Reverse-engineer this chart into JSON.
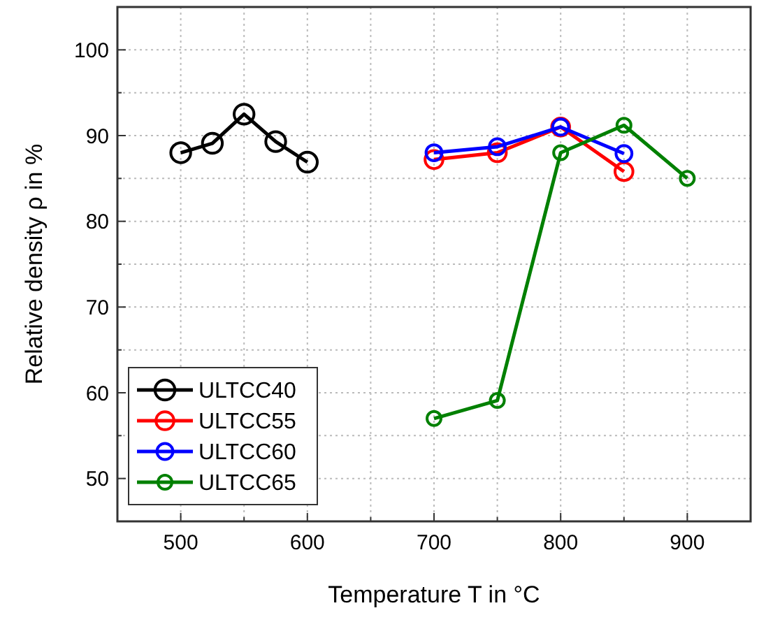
{
  "chart_data": {
    "type": "line",
    "xlabel": "Temperature T in °C",
    "ylabel": "Relative density ρ in %",
    "xlim": [
      450,
      950
    ],
    "ylim": [
      45,
      105
    ],
    "xticks": [
      {
        "value": 450,
        "label": null
      },
      500,
      {
        "value": 550,
        "label": null
      },
      600,
      {
        "value": 650,
        "label": null
      },
      700,
      {
        "value": 750,
        "label": null
      },
      800,
      {
        "value": 850,
        "label": null
      },
      900,
      {
        "value": 950,
        "label": null
      }
    ],
    "yticks": [
      {
        "value": 45,
        "label": null
      },
      50,
      {
        "value": 55,
        "label": null
      },
      60,
      {
        "value": 65,
        "label": null
      },
      70,
      {
        "value": 75,
        "label": null
      },
      80,
      {
        "value": 85,
        "label": null
      },
      90,
      {
        "value": 95,
        "label": null
      },
      100,
      {
        "value": 105,
        "label": null
      }
    ],
    "grid": true,
    "legend": "bottom left",
    "marker": "circle",
    "line_style": "solid",
    "series": [
      {
        "name": "ULTCC40",
        "color": "#000000",
        "x": [
          500,
          525,
          550,
          575,
          600
        ],
        "values": [
          88.0,
          89.1,
          92.5,
          89.3,
          86.9
        ]
      },
      {
        "name": "ULTCC55",
        "color": "#ff0000",
        "x": [
          700,
          750,
          800,
          850
        ],
        "values": [
          87.2,
          88.0,
          91.0,
          85.8
        ]
      },
      {
        "name": "ULTCC60",
        "color": "#0000ff",
        "x": [
          700,
          750,
          800,
          850
        ],
        "values": [
          88.0,
          88.7,
          91.0,
          87.9
        ]
      },
      {
        "name": "ULTCC65",
        "color": "#008000",
        "x": [
          700,
          750,
          800,
          850,
          900
        ],
        "values": [
          57.0,
          59.1,
          88.0,
          91.2,
          85.0
        ]
      }
    ]
  }
}
